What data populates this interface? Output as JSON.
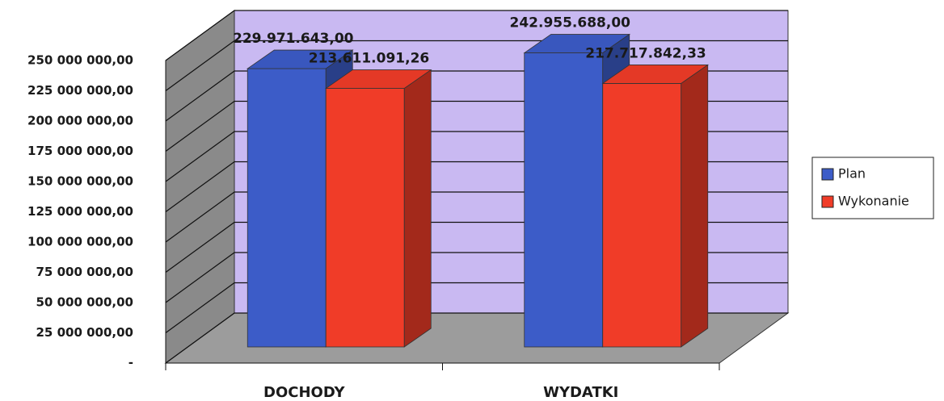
{
  "chart_data": {
    "type": "bar3d",
    "categories": [
      "DOCHODY",
      "WYDATKI"
    ],
    "series": [
      {
        "name": "Plan",
        "color": "#3c5cc8",
        "values": [
          229971643.0,
          242955688.0
        ],
        "value_labels": [
          "229.971.643,00",
          "242.955.688,00"
        ]
      },
      {
        "name": "Wykonanie",
        "color": "#f03c28",
        "values": [
          213611091.26,
          217717842.33
        ],
        "value_labels": [
          "213.611.091,26",
          "217.717.842,33"
        ]
      }
    ],
    "ylim": [
      0,
      250000000
    ],
    "yticks": [
      {
        "value": 0,
        "label": "-"
      },
      {
        "value": 25000000,
        "label": "25 000 000,00"
      },
      {
        "value": 50000000,
        "label": "50 000 000,00"
      },
      {
        "value": 75000000,
        "label": "75 000 000,00"
      },
      {
        "value": 100000000,
        "label": "100 000 000,00"
      },
      {
        "value": 125000000,
        "label": "125 000 000,00"
      },
      {
        "value": 150000000,
        "label": "150 000 000,00"
      },
      {
        "value": 175000000,
        "label": "175 000 000,00"
      },
      {
        "value": 200000000,
        "label": "200 000 000,00"
      },
      {
        "value": 225000000,
        "label": "225 000 000,00"
      },
      {
        "value": 250000000,
        "label": "250 000 000,00"
      }
    ],
    "grid": true,
    "legend": "right"
  }
}
